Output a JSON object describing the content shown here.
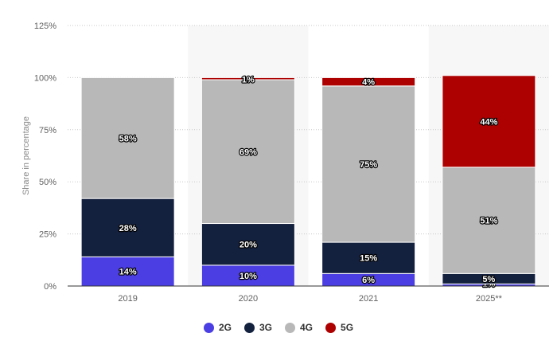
{
  "chart_data": {
    "type": "bar",
    "stacked": true,
    "categories": [
      "2019",
      "2020",
      "2021",
      "2025**"
    ],
    "series": [
      {
        "name": "2G",
        "color": "#4b3ee3",
        "values": [
          14,
          10,
          6,
          1
        ]
      },
      {
        "name": "3G",
        "color": "#13203e",
        "values": [
          28,
          20,
          15,
          5
        ]
      },
      {
        "name": "4G",
        "color": "#b8b8b8",
        "values": [
          58,
          69,
          75,
          51
        ]
      },
      {
        "name": "5G",
        "color": "#ad0000",
        "values": [
          0,
          1,
          4,
          44
        ]
      }
    ],
    "value_labels": {
      "2G": [
        "14%",
        "10%",
        "6%",
        "1%"
      ],
      "3G": [
        "28%",
        "20%",
        "15%",
        "5%"
      ],
      "4G": [
        "58%",
        "69%",
        "75%",
        "51%"
      ],
      "5G": [
        "",
        "1%",
        "4%",
        "44%"
      ]
    },
    "ylabel": "Share in percentage",
    "xlabel": "",
    "ylim": [
      0,
      125
    ],
    "yticks": [
      0,
      25,
      50,
      75,
      100,
      125
    ],
    "ytick_labels": [
      "0%",
      "25%",
      "50%",
      "75%",
      "100%",
      "125%"
    ],
    "grid": true,
    "legend": "bottom"
  }
}
